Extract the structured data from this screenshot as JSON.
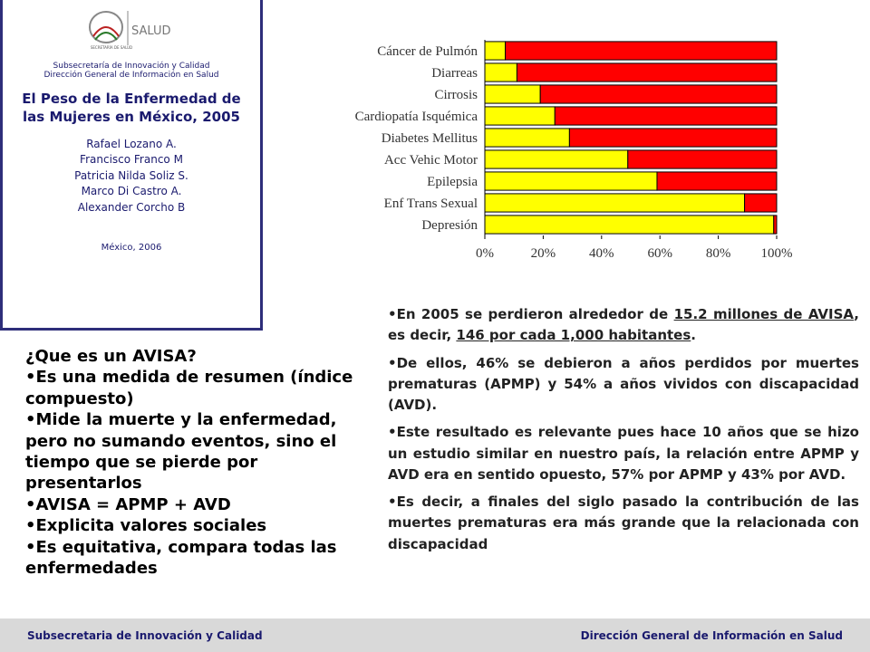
{
  "header": {
    "logo_text": "SECRETARÍA DE SALUD",
    "logo_word": "SALUD",
    "org": "Subsecretaría de Innovación y Calidad Dirección General de Información en Salud",
    "title": "El Peso de la Enfermedad de las Mujeres en México, 2005",
    "authors": [
      "Rafael Lozano A.",
      "Francisco Franco M",
      "Patricia Nilda Soliz S.",
      "Marco Di Castro A.",
      "Alexander Corcho B"
    ],
    "place_date": "México, 2006"
  },
  "chart_data": {
    "type": "stacked-hbar",
    "categories": [
      "Cáncer de Pulmón",
      "Diarreas",
      "Cirrosis",
      "Cardiopatía Isquémica",
      "Diabetes Mellitus",
      "Acc Vehic Motor",
      "Epilepsia",
      "Enf Trans Sexual",
      "Depresión"
    ],
    "series": [
      {
        "color": "#ffff00",
        "values": [
          7,
          11,
          19,
          24,
          29,
          49,
          59,
          89,
          99
        ]
      },
      {
        "color": "#ff0000",
        "values": [
          93,
          89,
          81,
          76,
          71,
          51,
          41,
          11,
          1
        ]
      }
    ],
    "xlim": [
      0,
      100
    ],
    "xticks": [
      {
        "value": 0,
        "label": "0%"
      },
      {
        "value": 20,
        "label": "20%"
      },
      {
        "value": 40,
        "label": "40%"
      },
      {
        "value": 60,
        "label": "60%"
      },
      {
        "value": 80,
        "label": "80%"
      },
      {
        "value": 100,
        "label": "100%"
      }
    ],
    "grid": false
  },
  "left_text": {
    "heading": "¿Que es un AVISA?",
    "bullets": [
      "Es una medida de resumen (índice compuesto)",
      "Mide la muerte y la enfermedad, pero no sumando eventos, sino el tiempo que se pierde por presentarlos",
      "AVISA = APMP + AVD",
      "Explicita valores sociales",
      "Es equitativa, compara todas las enfermedades"
    ]
  },
  "right_text": {
    "p1": [
      "En 2005 se perdieron alrededor de ",
      "15.2 millones de AVISA",
      ", es decir, ",
      "146 por cada 1,000 habitantes",
      "."
    ],
    "p2": "De ellos, 46% se debieron a años perdidos por muertes prematuras (APMP) y 54% a años vividos con discapacidad (AVD).",
    "p3": "Este resultado es relevante pues hace 10 años que se hizo un estudio similar en nuestro país, la relación entre APMP y AVD era en sentido opuesto, 57% por APMP y 43% por AVD.",
    "p4": "Es decir, a finales del siglo pasado la contribución de las muertes prematuras era más grande que la relacionada con discapacidad"
  },
  "footer": {
    "left": "Subsecretaria de Innovación y Calidad",
    "right": "Dirección General de Información en Salud"
  }
}
